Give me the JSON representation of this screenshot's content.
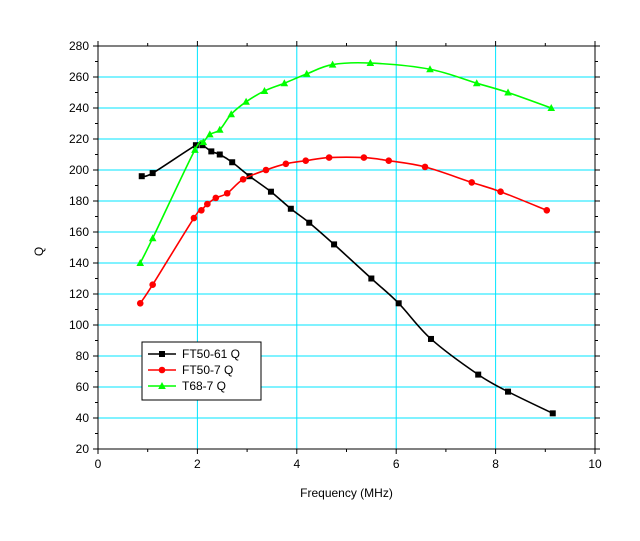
{
  "chart_data": {
    "type": "line",
    "title": "",
    "xlabel": "Frequency (MHz)",
    "ylabel": "Q",
    "xlim": [
      0,
      10
    ],
    "ylim": [
      20,
      280
    ],
    "x_ticks": [
      0,
      2,
      4,
      6,
      8,
      10
    ],
    "x_tick_labels": [
      "0",
      "2",
      "4",
      "6",
      "8",
      "10"
    ],
    "y_ticks": [
      20,
      40,
      60,
      80,
      100,
      120,
      140,
      160,
      180,
      200,
      220,
      240,
      260,
      280
    ],
    "y_tick_labels": [
      "20",
      "40",
      "60",
      "80",
      "100",
      "120",
      "140",
      "160",
      "180",
      "200",
      "220",
      "240",
      "260",
      "280"
    ],
    "grid": true,
    "grid_color": "#00e5ff",
    "legend_position": "lower-left",
    "series": [
      {
        "name": "FT50-61 Q",
        "color": "#000000",
        "marker": "square",
        "x": [
          0.88,
          1.1,
          1.97,
          2.1,
          2.28,
          2.45,
          2.7,
          3.05,
          3.48,
          3.88,
          4.25,
          4.75,
          5.5,
          6.05,
          6.7,
          7.65,
          8.25,
          9.15
        ],
        "y": [
          196,
          198,
          216,
          216,
          212,
          210,
          205,
          196,
          186,
          175,
          166,
          152,
          130,
          114,
          91,
          68,
          57,
          43
        ]
      },
      {
        "name": "FT50-7 Q",
        "color": "#ff0000",
        "marker": "circle",
        "x": [
          0.85,
          1.1,
          1.93,
          2.08,
          2.2,
          2.37,
          2.6,
          2.92,
          3.38,
          3.78,
          4.18,
          4.65,
          5.35,
          5.85,
          6.58,
          7.52,
          8.1,
          9.03
        ],
        "y": [
          114,
          126,
          169,
          174,
          178,
          182,
          185,
          194,
          200,
          204,
          206,
          208,
          208,
          206,
          202,
          192,
          186,
          174
        ]
      },
      {
        "name": "T68-7 Q",
        "color": "#00ff00",
        "marker": "triangle",
        "x": [
          0.85,
          1.1,
          1.95,
          2.12,
          2.25,
          2.45,
          2.68,
          2.98,
          3.35,
          3.75,
          4.2,
          4.72,
          5.48,
          6.68,
          7.62,
          8.25,
          9.12
        ],
        "y": [
          140,
          156,
          213,
          218,
          223,
          226,
          236,
          244,
          251,
          256,
          262,
          268,
          269,
          265,
          256,
          250,
          240
        ]
      }
    ]
  }
}
